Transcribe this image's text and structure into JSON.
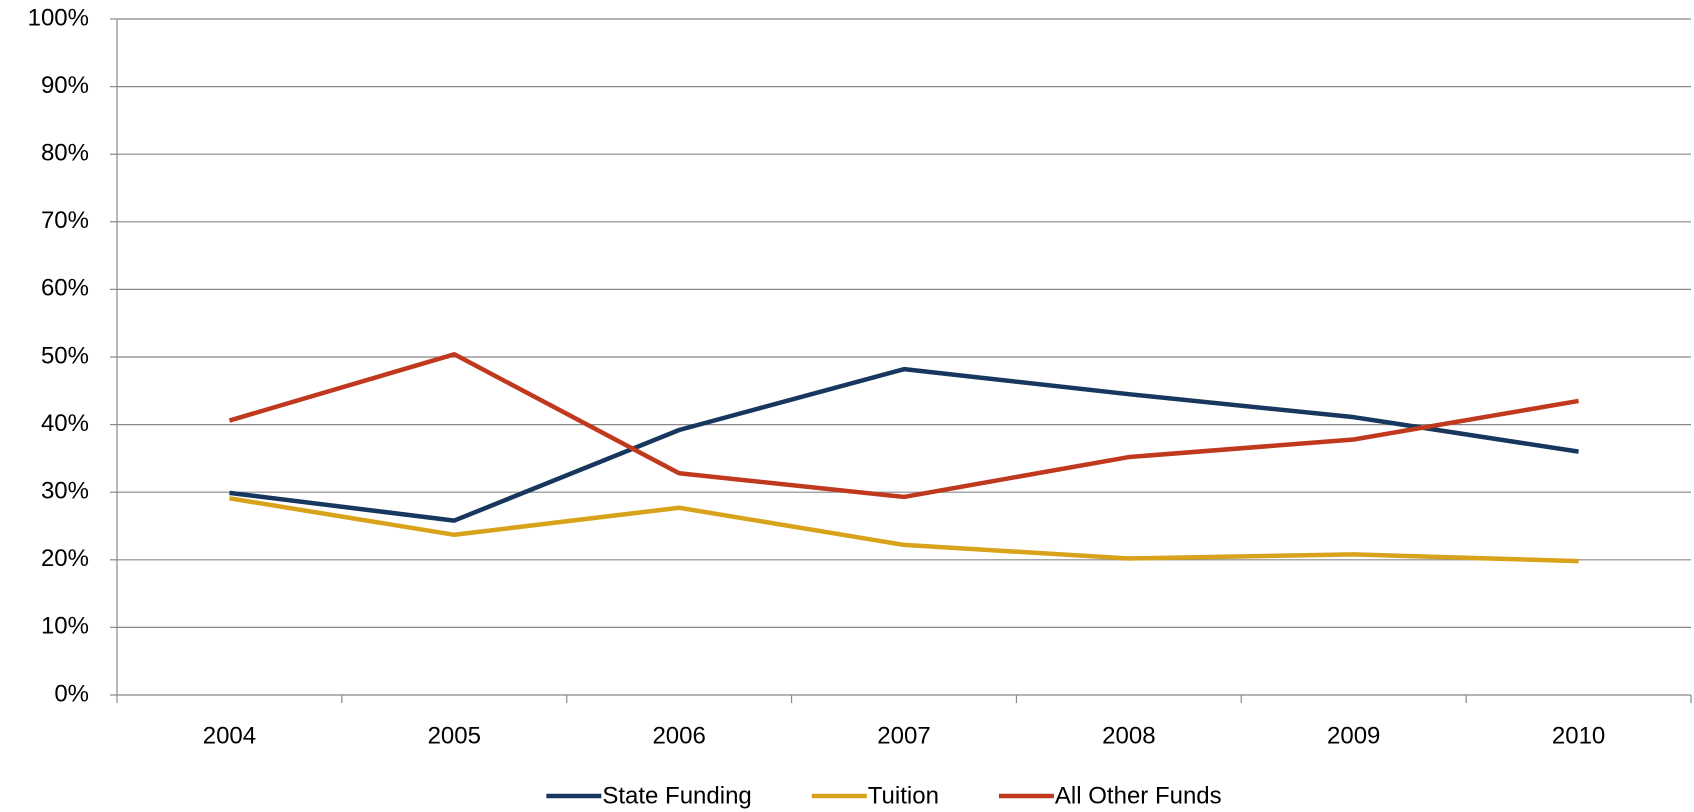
{
  "chart_data": {
    "type": "line",
    "categories": [
      "2004",
      "2005",
      "2006",
      "2007",
      "2008",
      "2009",
      "2010"
    ],
    "series": [
      {
        "name": "State Funding",
        "color": "#17375e",
        "values": [
          29.9,
          25.8,
          39.2,
          48.2,
          44.5,
          41.1,
          36.0
        ]
      },
      {
        "name": "Tuition",
        "color": "#d8a31a",
        "values": [
          29.1,
          23.7,
          27.7,
          22.2,
          20.2,
          20.8,
          19.8
        ]
      },
      {
        "name": "All Other Funds",
        "color": "#c0391f",
        "values": [
          40.6,
          50.4,
          32.8,
          29.3,
          35.2,
          37.8,
          43.5
        ]
      }
    ],
    "ylim": [
      0,
      100
    ],
    "yticks": [
      {
        "value": 0,
        "label": "0%"
      },
      {
        "value": 10,
        "label": "10%"
      },
      {
        "value": 20,
        "label": "20%"
      },
      {
        "value": 30,
        "label": "30%"
      },
      {
        "value": 40,
        "label": "40%"
      },
      {
        "value": 50,
        "label": "50%"
      },
      {
        "value": 60,
        "label": "60%"
      },
      {
        "value": 70,
        "label": "70%"
      },
      {
        "value": 80,
        "label": "80%"
      },
      {
        "value": 90,
        "label": "90%"
      },
      {
        "value": 100,
        "label": "100%"
      }
    ],
    "grid": true,
    "legend": "bottom"
  }
}
